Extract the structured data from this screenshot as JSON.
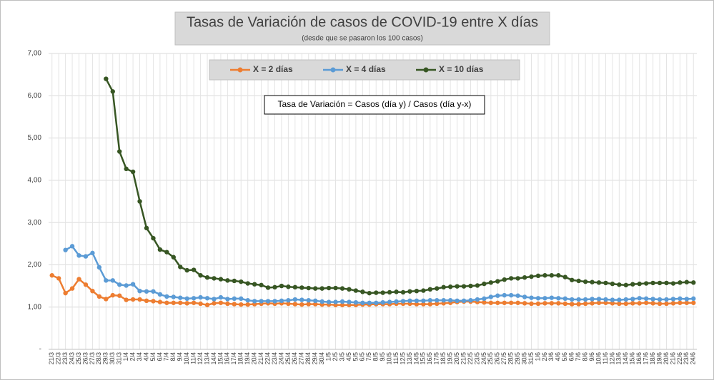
{
  "chart_data": {
    "type": "line",
    "title": "Tasas de Variación de casos de COVID-19 entre X días",
    "subtitle": "(desde que se pasaron los 100 casos)",
    "annotation": "Tasa de Variación = Casos (día y) / Casos (día y-x)",
    "categories": [
      "21/3",
      "22/3",
      "23/3",
      "24/3",
      "25/3",
      "26/3",
      "27/3",
      "28/3",
      "29/3",
      "30/3",
      "31/3",
      "1/4",
      "2/4",
      "3/4",
      "4/4",
      "5/4",
      "6/4",
      "7/4",
      "8/4",
      "9/4",
      "10/4",
      "11/4",
      "12/4",
      "13/4",
      "14/4",
      "15/4",
      "16/4",
      "17/4",
      "18/4",
      "19/4",
      "20/4",
      "21/4",
      "22/4",
      "23/4",
      "24/4",
      "25/4",
      "26/4",
      "27/4",
      "28/4",
      "29/4",
      "30/4",
      "1/5",
      "2/5",
      "3/5",
      "4/5",
      "5/5",
      "6/5",
      "7/5",
      "8/5",
      "9/5",
      "10/5",
      "11/5",
      "12/5",
      "13/5",
      "14/5",
      "15/5",
      "16/5",
      "17/5",
      "18/5",
      "19/5",
      "20/5",
      "21/5",
      "22/5",
      "23/5",
      "24/5",
      "25/5",
      "26/5",
      "27/5",
      "28/5",
      "29/5",
      "30/5",
      "31/5",
      "1/6",
      "2/6",
      "3/6",
      "4/6",
      "5/6",
      "6/6",
      "7/6",
      "8/6",
      "9/6",
      "10/6",
      "11/6",
      "12/6",
      "13/6",
      "14/6",
      "15/6",
      "16/6",
      "17/6",
      "18/6",
      "19/6",
      "20/6",
      "21/6",
      "22/6",
      "23/6",
      "24/6"
    ],
    "series": [
      {
        "name": "X = 2 días",
        "color": "#ed7d31",
        "values": [
          1.75,
          1.68,
          1.33,
          1.44,
          1.66,
          1.53,
          1.38,
          1.25,
          1.19,
          1.28,
          1.27,
          1.17,
          1.18,
          1.18,
          1.15,
          1.14,
          1.12,
          1.1,
          1.1,
          1.1,
          1.09,
          1.1,
          1.08,
          1.05,
          1.09,
          1.1,
          1.08,
          1.07,
          1.06,
          1.06,
          1.07,
          1.08,
          1.09,
          1.08,
          1.09,
          1.08,
          1.07,
          1.06,
          1.07,
          1.07,
          1.06,
          1.06,
          1.05,
          1.05,
          1.05,
          1.05,
          1.06,
          1.06,
          1.07,
          1.07,
          1.07,
          1.08,
          1.08,
          1.08,
          1.07,
          1.07,
          1.07,
          1.08,
          1.09,
          1.1,
          1.12,
          1.13,
          1.13,
          1.12,
          1.11,
          1.1,
          1.1,
          1.1,
          1.1,
          1.1,
          1.09,
          1.08,
          1.08,
          1.09,
          1.09,
          1.09,
          1.08,
          1.07,
          1.07,
          1.08,
          1.09,
          1.1,
          1.1,
          1.09,
          1.08,
          1.08,
          1.09,
          1.09,
          1.1,
          1.09,
          1.08,
          1.08,
          1.09,
          1.1,
          1.1,
          1.1
        ]
      },
      {
        "name": "X = 4 días",
        "color": "#5b9bd5",
        "values": [
          null,
          null,
          2.35,
          2.44,
          2.22,
          2.2,
          2.28,
          1.94,
          1.63,
          1.63,
          1.53,
          1.51,
          1.54,
          1.38,
          1.37,
          1.37,
          1.3,
          1.25,
          1.24,
          1.22,
          1.2,
          1.21,
          1.23,
          1.21,
          1.19,
          1.23,
          1.19,
          1.2,
          1.2,
          1.16,
          1.14,
          1.14,
          1.14,
          1.14,
          1.15,
          1.16,
          1.18,
          1.17,
          1.16,
          1.15,
          1.13,
          1.12,
          1.12,
          1.13,
          1.12,
          1.11,
          1.1,
          1.1,
          1.1,
          1.11,
          1.12,
          1.13,
          1.14,
          1.15,
          1.15,
          1.15,
          1.16,
          1.16,
          1.16,
          1.16,
          1.15,
          1.15,
          1.16,
          1.18,
          1.2,
          1.24,
          1.27,
          1.28,
          1.28,
          1.27,
          1.24,
          1.22,
          1.21,
          1.21,
          1.22,
          1.21,
          1.2,
          1.18,
          1.18,
          1.18,
          1.19,
          1.19,
          1.18,
          1.17,
          1.17,
          1.18,
          1.19,
          1.21,
          1.2,
          1.19,
          1.18,
          1.18,
          1.19,
          1.2,
          1.19,
          1.2
        ]
      },
      {
        "name": "X = 10 días",
        "color": "#375623",
        "values": [
          null,
          null,
          null,
          null,
          null,
          null,
          null,
          null,
          6.4,
          6.1,
          4.68,
          4.27,
          4.2,
          3.5,
          2.87,
          2.63,
          2.36,
          2.3,
          2.18,
          1.95,
          1.87,
          1.88,
          1.75,
          1.7,
          1.68,
          1.66,
          1.63,
          1.62,
          1.6,
          1.56,
          1.54,
          1.52,
          1.46,
          1.47,
          1.5,
          1.48,
          1.47,
          1.46,
          1.45,
          1.44,
          1.44,
          1.45,
          1.45,
          1.44,
          1.42,
          1.39,
          1.36,
          1.33,
          1.34,
          1.34,
          1.35,
          1.36,
          1.35,
          1.37,
          1.38,
          1.39,
          1.42,
          1.44,
          1.47,
          1.48,
          1.49,
          1.49,
          1.5,
          1.51,
          1.55,
          1.58,
          1.61,
          1.65,
          1.68,
          1.68,
          1.7,
          1.72,
          1.74,
          1.75,
          1.75,
          1.75,
          1.71,
          1.64,
          1.62,
          1.6,
          1.59,
          1.58,
          1.57,
          1.55,
          1.53,
          1.52,
          1.54,
          1.55,
          1.56,
          1.57,
          1.57,
          1.57,
          1.56,
          1.58,
          1.59,
          1.58
        ]
      }
    ],
    "ylim": [
      0,
      7
    ],
    "yticks": [
      {
        "value": 0,
        "label": "-"
      },
      {
        "value": 1,
        "label": "1,00"
      },
      {
        "value": 2,
        "label": "2,00"
      },
      {
        "value": 3,
        "label": "3,00"
      },
      {
        "value": 4,
        "label": "4,00"
      },
      {
        "value": 5,
        "label": "5,00"
      },
      {
        "value": 6,
        "label": "6,00"
      },
      {
        "value": 7,
        "label": "7,00"
      }
    ],
    "grid": true
  }
}
